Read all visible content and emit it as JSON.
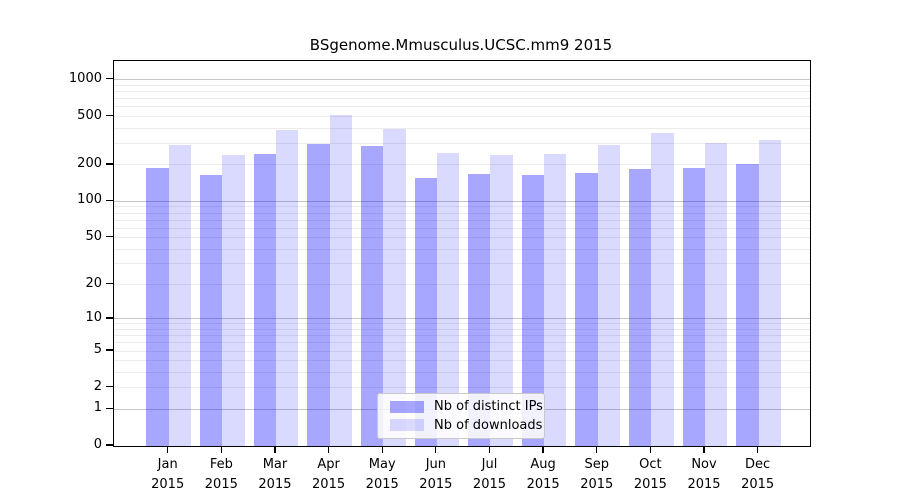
{
  "chart_data": {
    "type": "bar",
    "title": "BSgenome.Mmusculus.UCSC.mm9 2015",
    "x_year": "2015",
    "categories": [
      "Jan",
      "Feb",
      "Mar",
      "Apr",
      "May",
      "Jun",
      "Jul",
      "Aug",
      "Sep",
      "Oct",
      "Nov",
      "Dec"
    ],
    "series": [
      {
        "name": "Nb of distinct IPs",
        "color": "rgba(0,0,255,0.345)",
        "swatch_hex": "#a8a8f8",
        "values": [
          190,
          165,
          245,
          300,
          285,
          155,
          170,
          165,
          172,
          185,
          190,
          205
        ]
      },
      {
        "name": "Nb of downloads",
        "color": "rgba(0,0,255,0.145)",
        "swatch_hex": "#dadafb",
        "values": [
          290,
          240,
          390,
          515,
          395,
          250,
          240,
          245,
          290,
          365,
          305,
          320
        ]
      }
    ],
    "y_ticks": [
      0,
      1,
      2,
      5,
      10,
      20,
      50,
      100,
      200,
      500,
      1000
    ],
    "y_scale": "log1p",
    "ylim": [
      0,
      1430
    ],
    "grid": true,
    "gridline_major_color": "#c6c6c6",
    "gridline_minor_color": "#ebebeb",
    "legend_position": "lower center"
  }
}
